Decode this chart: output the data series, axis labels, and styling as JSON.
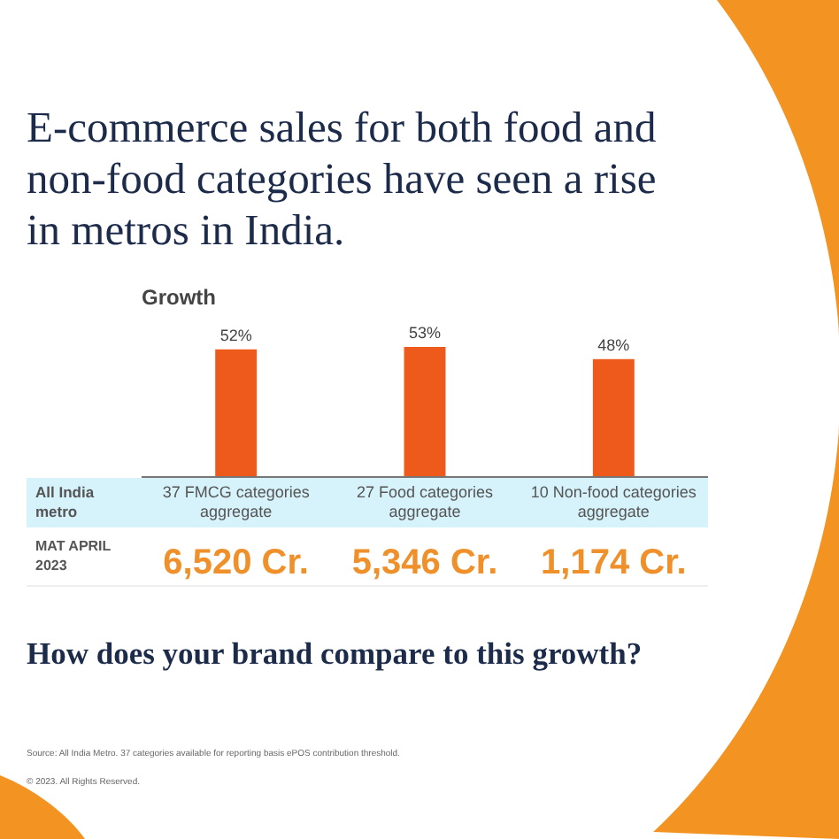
{
  "chart_data": {
    "type": "bar",
    "title": "E-commerce sales for both food and non-food categories have seen a rise in metros in India.",
    "ylabel": "Growth",
    "categories": [
      "37 FMCG categories aggregate",
      "27 Food categories aggregate",
      "10 Non-food categories aggregate"
    ],
    "values": [
      52,
      53,
      48
    ],
    "color": "#ee5a1b",
    "value_labels": [
      "52%",
      "53%",
      "48%"
    ],
    "annotations": [
      "All India metro",
      "MAT APRIL 2023",
      "6,520 Cr.",
      "5,346 Cr.",
      "1,174 Cr.",
      "How does your brand compare to this growth?",
      "Source: All India Metro. 37 categories available for reporting basis ePOS contribution threshold.",
      "© 2023. All Rights Reserved."
    ]
  }
}
